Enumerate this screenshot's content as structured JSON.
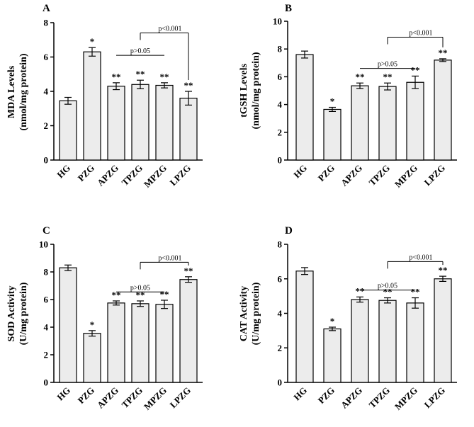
{
  "chart_data": [
    {
      "type": "bar",
      "panel": "A",
      "ylabel_line1": "MDA Levels",
      "ylabel_line2": "(nmol/mg protein)",
      "ylim": [
        0,
        8
      ],
      "ticks": [
        "0",
        "2",
        "4",
        "6",
        "8"
      ],
      "categories": [
        "HG",
        "PZG",
        "APZG",
        "TPZG",
        "MPZG",
        "LPZG"
      ],
      "values": [
        3.45,
        6.3,
        4.3,
        4.4,
        4.35,
        3.6
      ],
      "errors": [
        0.2,
        0.25,
        0.2,
        0.25,
        0.15,
        0.4
      ],
      "stars": [
        "",
        "*",
        "**",
        "**",
        "**",
        "**"
      ],
      "brackets": [
        {
          "label": "p>0.05",
          "from": 2,
          "to": 4,
          "y": 6.1,
          "drops": false
        },
        {
          "label": "p<0.001",
          "from": 3,
          "to": 5,
          "y": 7.4,
          "drops": true
        }
      ]
    },
    {
      "type": "bar",
      "panel": "B",
      "ylabel_line1": "tGSH Levels",
      "ylabel_line2": "(nmol/mg protein)",
      "ylim": [
        0,
        10
      ],
      "ticks": [
        "0",
        "2",
        "4",
        "6",
        "8",
        "10"
      ],
      "categories": [
        "HG",
        "PZG",
        "APZG",
        "TPZG",
        "MPZG",
        "LPZG"
      ],
      "values": [
        7.6,
        3.65,
        5.35,
        5.3,
        5.6,
        7.2
      ],
      "errors": [
        0.25,
        0.15,
        0.2,
        0.25,
        0.45,
        0.1
      ],
      "stars": [
        "",
        "*",
        "**",
        "**",
        "**",
        "**"
      ],
      "brackets": [
        {
          "label": "p>0.05",
          "from": 2,
          "to": 4,
          "y": 6.6,
          "drops": false
        },
        {
          "label": "p<0.001",
          "from": 3,
          "to": 5,
          "y": 8.85,
          "drops": true
        }
      ]
    },
    {
      "type": "bar",
      "panel": "C",
      "ylabel_line1": "SOD Activity",
      "ylabel_line2": "(U/mg protein)",
      "ylim": [
        0,
        10
      ],
      "ticks": [
        "0",
        "2",
        "4",
        "6",
        "8",
        "10"
      ],
      "categories": [
        "HG",
        "PZG",
        "APZG",
        "TPZG",
        "MPZG",
        "LPZG"
      ],
      "values": [
        8.3,
        3.55,
        5.75,
        5.7,
        5.65,
        7.45
      ],
      "errors": [
        0.2,
        0.2,
        0.15,
        0.2,
        0.3,
        0.2
      ],
      "stars": [
        "",
        "*",
        "**",
        "**",
        "**",
        "**"
      ],
      "brackets": [
        {
          "label": "p>0.05",
          "from": 2,
          "to": 4,
          "y": 6.55,
          "drops": false
        },
        {
          "label": "p<0.001",
          "from": 3,
          "to": 5,
          "y": 8.7,
          "drops": true
        }
      ]
    },
    {
      "type": "bar",
      "panel": "D",
      "ylabel_line1": "CAT Activity",
      "ylabel_line2": "(U/mg protein)",
      "ylim": [
        0,
        8
      ],
      "ticks": [
        "0",
        "2",
        "4",
        "6",
        "8"
      ],
      "categories": [
        "HG",
        "PZG",
        "APZG",
        "TPZG",
        "MPZG",
        "LPZG"
      ],
      "values": [
        6.45,
        3.1,
        4.8,
        4.75,
        4.6,
        6.0
      ],
      "errors": [
        0.2,
        0.1,
        0.15,
        0.15,
        0.3,
        0.15
      ],
      "stars": [
        "",
        "*",
        "**",
        "**",
        "**",
        "**"
      ],
      "brackets": [
        {
          "label": "p>0.05",
          "from": 2,
          "to": 4,
          "y": 5.35,
          "drops": false
        },
        {
          "label": "p<0.001",
          "from": 3,
          "to": 5,
          "y": 7.0,
          "drops": true
        }
      ]
    }
  ],
  "colors": {
    "bar_fill": "#ececec",
    "stroke": "#000000"
  }
}
